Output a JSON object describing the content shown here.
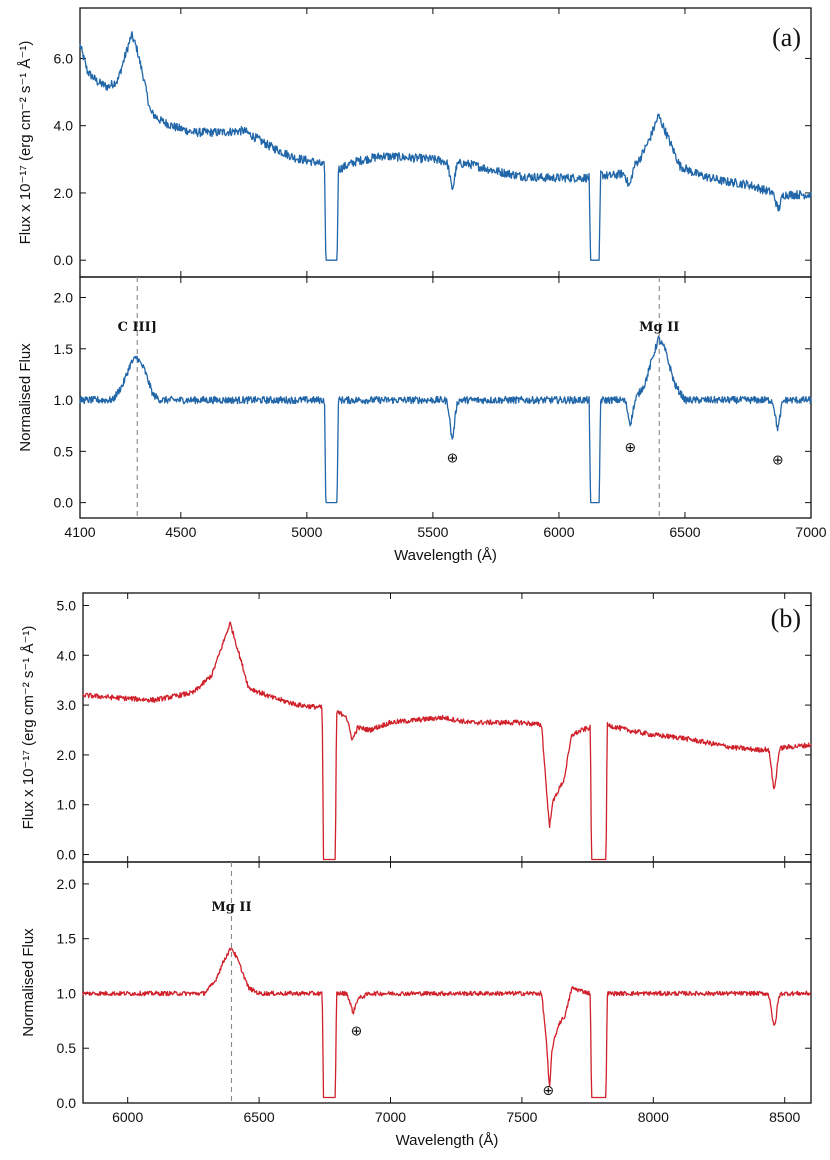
{
  "chart_data": [
    {
      "id": "a",
      "type": "line",
      "panel_label": "(a)",
      "color": "#2066a8",
      "xlabel": "Wavelength (Å)",
      "xlim": [
        4100,
        7000
      ],
      "x_ticks": [
        4100,
        4500,
        5000,
        5500,
        6000,
        6500,
        7000
      ],
      "subplots": [
        {
          "id": "flux",
          "ylabel": "Flux x 10⁻¹⁷ (erg cm⁻² s⁻¹ Å⁻¹)",
          "ylim": [
            -0.5,
            7.5
          ],
          "y_ticks": [
            "0.0",
            "2.0",
            "4.0",
            "6.0"
          ],
          "noise": 0.13,
          "series": [
            [
              4100,
              6.4
            ],
            [
              4130,
              5.6
            ],
            [
              4170,
              5.3
            ],
            [
              4210,
              5.15
            ],
            [
              4250,
              5.35
            ],
            [
              4280,
              6.1
            ],
            [
              4305,
              6.7
            ],
            [
              4325,
              6.3
            ],
            [
              4350,
              5.5
            ],
            [
              4380,
              4.4
            ],
            [
              4420,
              4.15
            ],
            [
              4480,
              3.95
            ],
            [
              4550,
              3.8
            ],
            [
              4650,
              3.8
            ],
            [
              4750,
              3.85
            ],
            [
              4850,
              3.4
            ],
            [
              4950,
              3.05
            ],
            [
              5040,
              2.9
            ],
            [
              5070,
              2.8
            ],
            [
              5075,
              0
            ],
            [
              5120,
              0
            ],
            [
              5125,
              2.7
            ],
            [
              5200,
              2.95
            ],
            [
              5300,
              3.1
            ],
            [
              5400,
              3.05
            ],
            [
              5500,
              3.0
            ],
            [
              5575,
              2.9
            ],
            [
              5650,
              2.85
            ],
            [
              5750,
              2.65
            ],
            [
              5850,
              2.5
            ],
            [
              5950,
              2.45
            ],
            [
              6050,
              2.45
            ],
            [
              6120,
              2.45
            ],
            [
              6125,
              0
            ],
            [
              6160,
              0
            ],
            [
              6165,
              2.55
            ],
            [
              6200,
              2.5
            ],
            [
              6270,
              2.6
            ],
            [
              6320,
              3.0
            ],
            [
              6360,
              3.6
            ],
            [
              6395,
              4.3
            ],
            [
              6430,
              3.7
            ],
            [
              6480,
              2.8
            ],
            [
              6550,
              2.55
            ],
            [
              6650,
              2.35
            ],
            [
              6750,
              2.25
            ],
            [
              6850,
              2.0
            ],
            [
              6900,
              1.95
            ],
            [
              7000,
              1.95
            ]
          ],
          "dips": [
            [
              5577,
              -0.75
            ],
            [
              6280,
              -0.45
            ],
            [
              6870,
              -0.45
            ]
          ]
        },
        {
          "id": "normalised",
          "ylabel": "Normalised Flux",
          "ylim": [
            -0.15,
            2.2
          ],
          "y_ticks": [
            "0.0",
            "0.5",
            "1.0",
            "1.5",
            "2.0"
          ],
          "noise": 0.035,
          "series": [
            [
              4100,
              1.0
            ],
            [
              4230,
              1.0
            ],
            [
              4270,
              1.15
            ],
            [
              4300,
              1.35
            ],
            [
              4325,
              1.42
            ],
            [
              4355,
              1.3
            ],
            [
              4390,
              1.05
            ],
            [
              4420,
              1.0
            ],
            [
              5070,
              1.0
            ],
            [
              5075,
              0
            ],
            [
              5120,
              0
            ],
            [
              5125,
              1.0
            ],
            [
              6120,
              1.0
            ],
            [
              6125,
              0
            ],
            [
              6160,
              0
            ],
            [
              6165,
              1.0
            ],
            [
              6300,
              1.0
            ],
            [
              6340,
              1.15
            ],
            [
              6370,
              1.4
            ],
            [
              6395,
              1.6
            ],
            [
              6420,
              1.5
            ],
            [
              6460,
              1.15
            ],
            [
              6500,
              1.0
            ],
            [
              7000,
              1.0
            ]
          ],
          "dips": [
            [
              5577,
              -0.37
            ],
            [
              6283,
              -0.22
            ],
            [
              6868,
              -0.27
            ]
          ],
          "annotations": [
            {
              "text": "C III]",
              "x": 4327,
              "y": 1.72
            },
            {
              "text": "Mg II",
              "x": 6398,
              "y": 1.72
            }
          ],
          "vlines": [
            4327,
            6398
          ],
          "telluric": [
            {
              "symbol": "⊕",
              "x": 5577,
              "y": 0.44
            },
            {
              "symbol": "⊕",
              "x": 6283,
              "y": 0.54
            },
            {
              "symbol": "⊕",
              "x": 6868,
              "y": 0.42
            }
          ]
        }
      ]
    },
    {
      "id": "b",
      "type": "line",
      "panel_label": "(b)",
      "color": "#d0202a",
      "xlabel": "Wavelength (Å)",
      "xlim": [
        5830,
        8600
      ],
      "x_ticks": [
        6000,
        6500,
        7000,
        7500,
        8000,
        8500
      ],
      "subplots": [
        {
          "id": "flux",
          "ylabel": "Flux x 10⁻¹⁷ (erg cm⁻² s⁻¹ Å⁻¹)",
          "ylim": [
            -0.15,
            5.25
          ],
          "y_ticks": [
            "0.0",
            "1.0",
            "2.0",
            "3.0",
            "4.0",
            "5.0"
          ],
          "noise": 0.05,
          "series": [
            [
              5830,
              3.2
            ],
            [
              5950,
              3.15
            ],
            [
              6100,
              3.1
            ],
            [
              6250,
              3.25
            ],
            [
              6320,
              3.6
            ],
            [
              6360,
              4.2
            ],
            [
              6390,
              4.65
            ],
            [
              6420,
              4.1
            ],
            [
              6460,
              3.35
            ],
            [
              6550,
              3.15
            ],
            [
              6650,
              3.0
            ],
            [
              6700,
              2.97
            ],
            [
              6740,
              2.95
            ],
            [
              6745,
              -0.1
            ],
            [
              6790,
              -0.1
            ],
            [
              6795,
              2.85
            ],
            [
              6830,
              2.8
            ],
            [
              6855,
              2.3
            ],
            [
              6875,
              2.55
            ],
            [
              6920,
              2.5
            ],
            [
              7000,
              2.65
            ],
            [
              7100,
              2.7
            ],
            [
              7200,
              2.75
            ],
            [
              7300,
              2.65
            ],
            [
              7400,
              2.65
            ],
            [
              7500,
              2.65
            ],
            [
              7575,
              2.6
            ],
            [
              7595,
              1.2
            ],
            [
              7605,
              0.55
            ],
            [
              7615,
              1.0
            ],
            [
              7630,
              1.2
            ],
            [
              7660,
              1.5
            ],
            [
              7690,
              2.4
            ],
            [
              7730,
              2.5
            ],
            [
              7760,
              2.55
            ],
            [
              7765,
              -0.1
            ],
            [
              7820,
              -0.1
            ],
            [
              7825,
              2.6
            ],
            [
              7900,
              2.5
            ],
            [
              8000,
              2.4
            ],
            [
              8100,
              2.35
            ],
            [
              8200,
              2.25
            ],
            [
              8300,
              2.15
            ],
            [
              8400,
              2.1
            ],
            [
              8500,
              2.15
            ],
            [
              8600,
              2.2
            ]
          ],
          "dips": [
            [
              8460,
              -0.8
            ]
          ]
        },
        {
          "id": "normalised",
          "ylabel": "Normalised Flux",
          "ylim": [
            0.0,
            2.2
          ],
          "y_ticks": [
            "0.0",
            "0.5",
            "1.0",
            "1.5",
            "2.0"
          ],
          "noise": 0.02,
          "series": [
            [
              5830,
              1.0
            ],
            [
              6290,
              1.0
            ],
            [
              6330,
              1.1
            ],
            [
              6370,
              1.32
            ],
            [
              6395,
              1.42
            ],
            [
              6420,
              1.3
            ],
            [
              6460,
              1.05
            ],
            [
              6500,
              1.0
            ],
            [
              6740,
              1.0
            ],
            [
              6745,
              0.05
            ],
            [
              6790,
              0.05
            ],
            [
              6795,
              1.0
            ],
            [
              6835,
              1.0
            ],
            [
              6858,
              0.82
            ],
            [
              6875,
              0.95
            ],
            [
              6920,
              1.0
            ],
            [
              7575,
              1.0
            ],
            [
              7592,
              0.6
            ],
            [
              7605,
              0.12
            ],
            [
              7615,
              0.5
            ],
            [
              7640,
              0.72
            ],
            [
              7665,
              0.8
            ],
            [
              7690,
              1.05
            ],
            [
              7760,
              1.0
            ],
            [
              7765,
              0.05
            ],
            [
              7820,
              0.05
            ],
            [
              7825,
              1.0
            ],
            [
              8600,
              1.0
            ]
          ],
          "dips": [
            [
              8460,
              -0.3
            ]
          ],
          "annotations": [
            {
              "text": "Mg II",
              "x": 6395,
              "y": 1.8
            }
          ],
          "vlines": [
            6395
          ],
          "telluric": [
            {
              "symbol": "⊕",
              "x": 6870,
              "y": 0.66
            },
            {
              "symbol": "⊕",
              "x": 7600,
              "y": 0.12
            }
          ]
        }
      ]
    }
  ]
}
